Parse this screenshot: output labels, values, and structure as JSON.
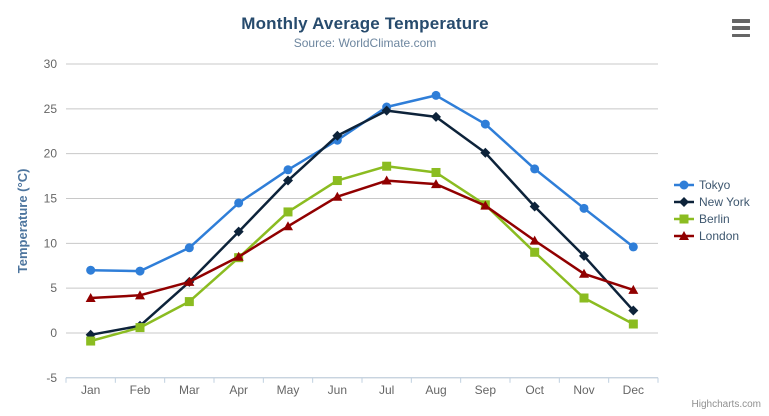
{
  "header": {
    "title": "Monthly Average Temperature",
    "subtitle": "Source: WorldClimate.com"
  },
  "export_menu": {
    "icon": "hamburger-icon",
    "tooltip": "Chart context menu"
  },
  "credits": {
    "text": "Highcharts.com"
  },
  "legend": {
    "position": "right",
    "items": [
      "Tokyo",
      "New York",
      "Berlin",
      "London"
    ]
  },
  "theme": {
    "title_color": "#274b6d",
    "subtitle_color": "#6d869f",
    "axis_label_color": "#666666",
    "yaxis_title_color": "#4d759e",
    "grid_color": "#c8c8c8",
    "xaxis_line_color": "#c0d0e0",
    "legend_text_color": "#3e576f",
    "credits_color": "#909090",
    "background": "#ffffff"
  },
  "chart_data": {
    "type": "line",
    "title": "Monthly Average Temperature",
    "subtitle": "Source: WorldClimate.com",
    "xlabel": "",
    "ylabel": "Temperature (°C)",
    "ylim": [
      -5,
      30
    ],
    "yaxis_ticks": [
      -5,
      0,
      5,
      10,
      15,
      20,
      25,
      30
    ],
    "grid": true,
    "legend_position": "right",
    "categories": [
      "Jan",
      "Feb",
      "Mar",
      "Apr",
      "May",
      "Jun",
      "Jul",
      "Aug",
      "Sep",
      "Oct",
      "Nov",
      "Dec"
    ],
    "series": [
      {
        "name": "Tokyo",
        "color": "#2f7ed8",
        "marker": "circle",
        "values": [
          7.0,
          6.9,
          9.5,
          14.5,
          18.2,
          21.5,
          25.2,
          26.5,
          23.3,
          18.3,
          13.9,
          9.6
        ]
      },
      {
        "name": "New York",
        "color": "#0d233a",
        "marker": "diamond",
        "values": [
          -0.2,
          0.8,
          5.7,
          11.3,
          17.0,
          22.0,
          24.8,
          24.1,
          20.1,
          14.1,
          8.6,
          2.5
        ]
      },
      {
        "name": "Berlin",
        "color": "#8bbc21",
        "marker": "square",
        "values": [
          -0.9,
          0.6,
          3.5,
          8.4,
          13.5,
          17.0,
          18.6,
          17.9,
          14.3,
          9.0,
          3.9,
          1.0
        ]
      },
      {
        "name": "London",
        "color": "#910000",
        "marker": "triangle",
        "values": [
          3.9,
          4.2,
          5.7,
          8.5,
          11.9,
          15.2,
          17.0,
          16.6,
          14.2,
          10.3,
          6.6,
          4.8
        ]
      }
    ]
  }
}
